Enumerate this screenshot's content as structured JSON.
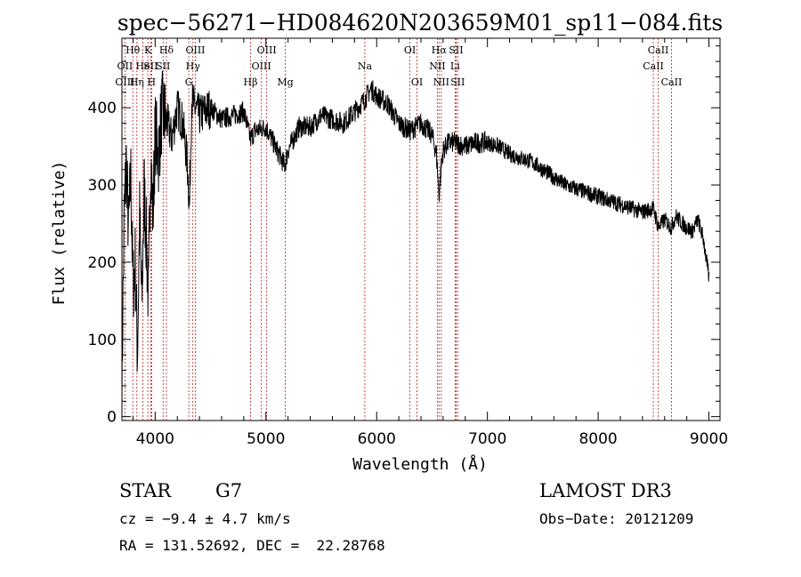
{
  "chart_data": {
    "type": "line",
    "title": "spec−56271−HD084620N203659M01_sp11−084.fits",
    "xlabel": "Wavelength (Å)",
    "ylabel": "Flux (relative)",
    "xlim": [
      3700,
      9100
    ],
    "ylim": [
      -5,
      490
    ],
    "xticks": [
      4000,
      5000,
      6000,
      7000,
      8000,
      9000
    ],
    "yticks": [
      0,
      100,
      200,
      300,
      400
    ],
    "series": [
      {
        "name": "spectrum",
        "x": [
          3700,
          3720,
          3740,
          3760,
          3780,
          3800,
          3820,
          3840,
          3860,
          3880,
          3900,
          3920,
          3940,
          3960,
          3980,
          4000,
          4030,
          4060,
          4100,
          4150,
          4200,
          4250,
          4290,
          4310,
          4330,
          4360,
          4400,
          4450,
          4500,
          4600,
          4700,
          4800,
          4860,
          4900,
          5000,
          5100,
          5170,
          5200,
          5300,
          5400,
          5500,
          5600,
          5700,
          5800,
          5890,
          5950,
          6000,
          6100,
          6200,
          6300,
          6400,
          6500,
          6540,
          6563,
          6580,
          6600,
          6650,
          6700,
          6800,
          6900,
          7000,
          7100,
          7200,
          7300,
          7400,
          7500,
          7600,
          7700,
          7800,
          7900,
          8000,
          8100,
          8200,
          8300,
          8400,
          8500,
          8542,
          8600,
          8662,
          8700,
          8760,
          8800,
          8850,
          8900,
          8950,
          9000
        ],
        "y": [
          40,
          260,
          330,
          240,
          310,
          170,
          200,
          80,
          260,
          140,
          300,
          230,
          150,
          340,
          260,
          370,
          340,
          395,
          385,
          360,
          400,
          380,
          330,
          270,
          410,
          400,
          390,
          395,
          400,
          385,
          390,
          395,
          360,
          370,
          375,
          345,
          325,
          345,
          375,
          375,
          390,
          385,
          380,
          395,
          410,
          425,
          415,
          405,
          380,
          370,
          380,
          365,
          340,
          285,
          320,
          345,
          355,
          355,
          350,
          355,
          355,
          350,
          340,
          335,
          330,
          320,
          310,
          300,
          295,
          290,
          285,
          280,
          275,
          270,
          265,
          270,
          245,
          255,
          245,
          260,
          250,
          245,
          240,
          255,
          230,
          180
        ]
      }
    ],
    "line_markers": [
      {
        "label": "Hθ",
        "x": 3798,
        "row": 0
      },
      {
        "label": "OII",
        "x": 3727,
        "row": 1
      },
      {
        "label": "OIII",
        "x": 3727,
        "row": 2
      },
      {
        "label": "Hη",
        "x": 3835,
        "row": 2
      },
      {
        "label": "He",
        "x": 3889,
        "row": 1
      },
      {
        "label": "K",
        "x": 3934,
        "row": 0
      },
      {
        "label": "SII",
        "x": 3960,
        "row": 1
      },
      {
        "label": "H",
        "x": 3968,
        "row": 2
      },
      {
        "label": "Hδ",
        "x": 4102,
        "row": 0
      },
      {
        "label": "SII",
        "x": 4072,
        "row": 1
      },
      {
        "label": "OIII",
        "x": 4363,
        "row": 0
      },
      {
        "label": "Hγ",
        "x": 4341,
        "row": 1
      },
      {
        "label": "G",
        "x": 4304,
        "row": 2
      },
      {
        "label": "OIII",
        "x": 5007,
        "row": 0
      },
      {
        "label": "OIII",
        "x": 4959,
        "row": 1
      },
      {
        "label": "Hβ",
        "x": 4861,
        "row": 2
      },
      {
        "label": "Mg",
        "x": 5175,
        "row": 2
      },
      {
        "label": "Na",
        "x": 5893,
        "row": 1
      },
      {
        "label": "OI",
        "x": 6300,
        "row": 0
      },
      {
        "label": "OI",
        "x": 6364,
        "row": 2
      },
      {
        "label": "Hα",
        "x": 6563,
        "row": 0
      },
      {
        "label": "SII",
        "x": 6717,
        "row": 0
      },
      {
        "label": "NII",
        "x": 6548,
        "row": 1
      },
      {
        "label": "Li",
        "x": 6708,
        "row": 1
      },
      {
        "label": "NII",
        "x": 6583,
        "row": 2
      },
      {
        "label": "SII",
        "x": 6731,
        "row": 2
      },
      {
        "label": "CaII",
        "x": 8542,
        "row": 0
      },
      {
        "label": "CaII",
        "x": 8498,
        "row": 1
      },
      {
        "label": "CaII",
        "x": 8662,
        "row": 2
      }
    ]
  },
  "info": {
    "object_type": "STAR",
    "subclass": "G7",
    "cz": "cz = −9.4 ± 4.7 km/s",
    "radec": "RA = 131.52692, DEC =  22.28768",
    "survey": "LAMOST DR3",
    "obs_date": "Obs−Date: 20121209"
  },
  "colors": {
    "line_marker": "#b22222",
    "spectrum": "#000000"
  }
}
